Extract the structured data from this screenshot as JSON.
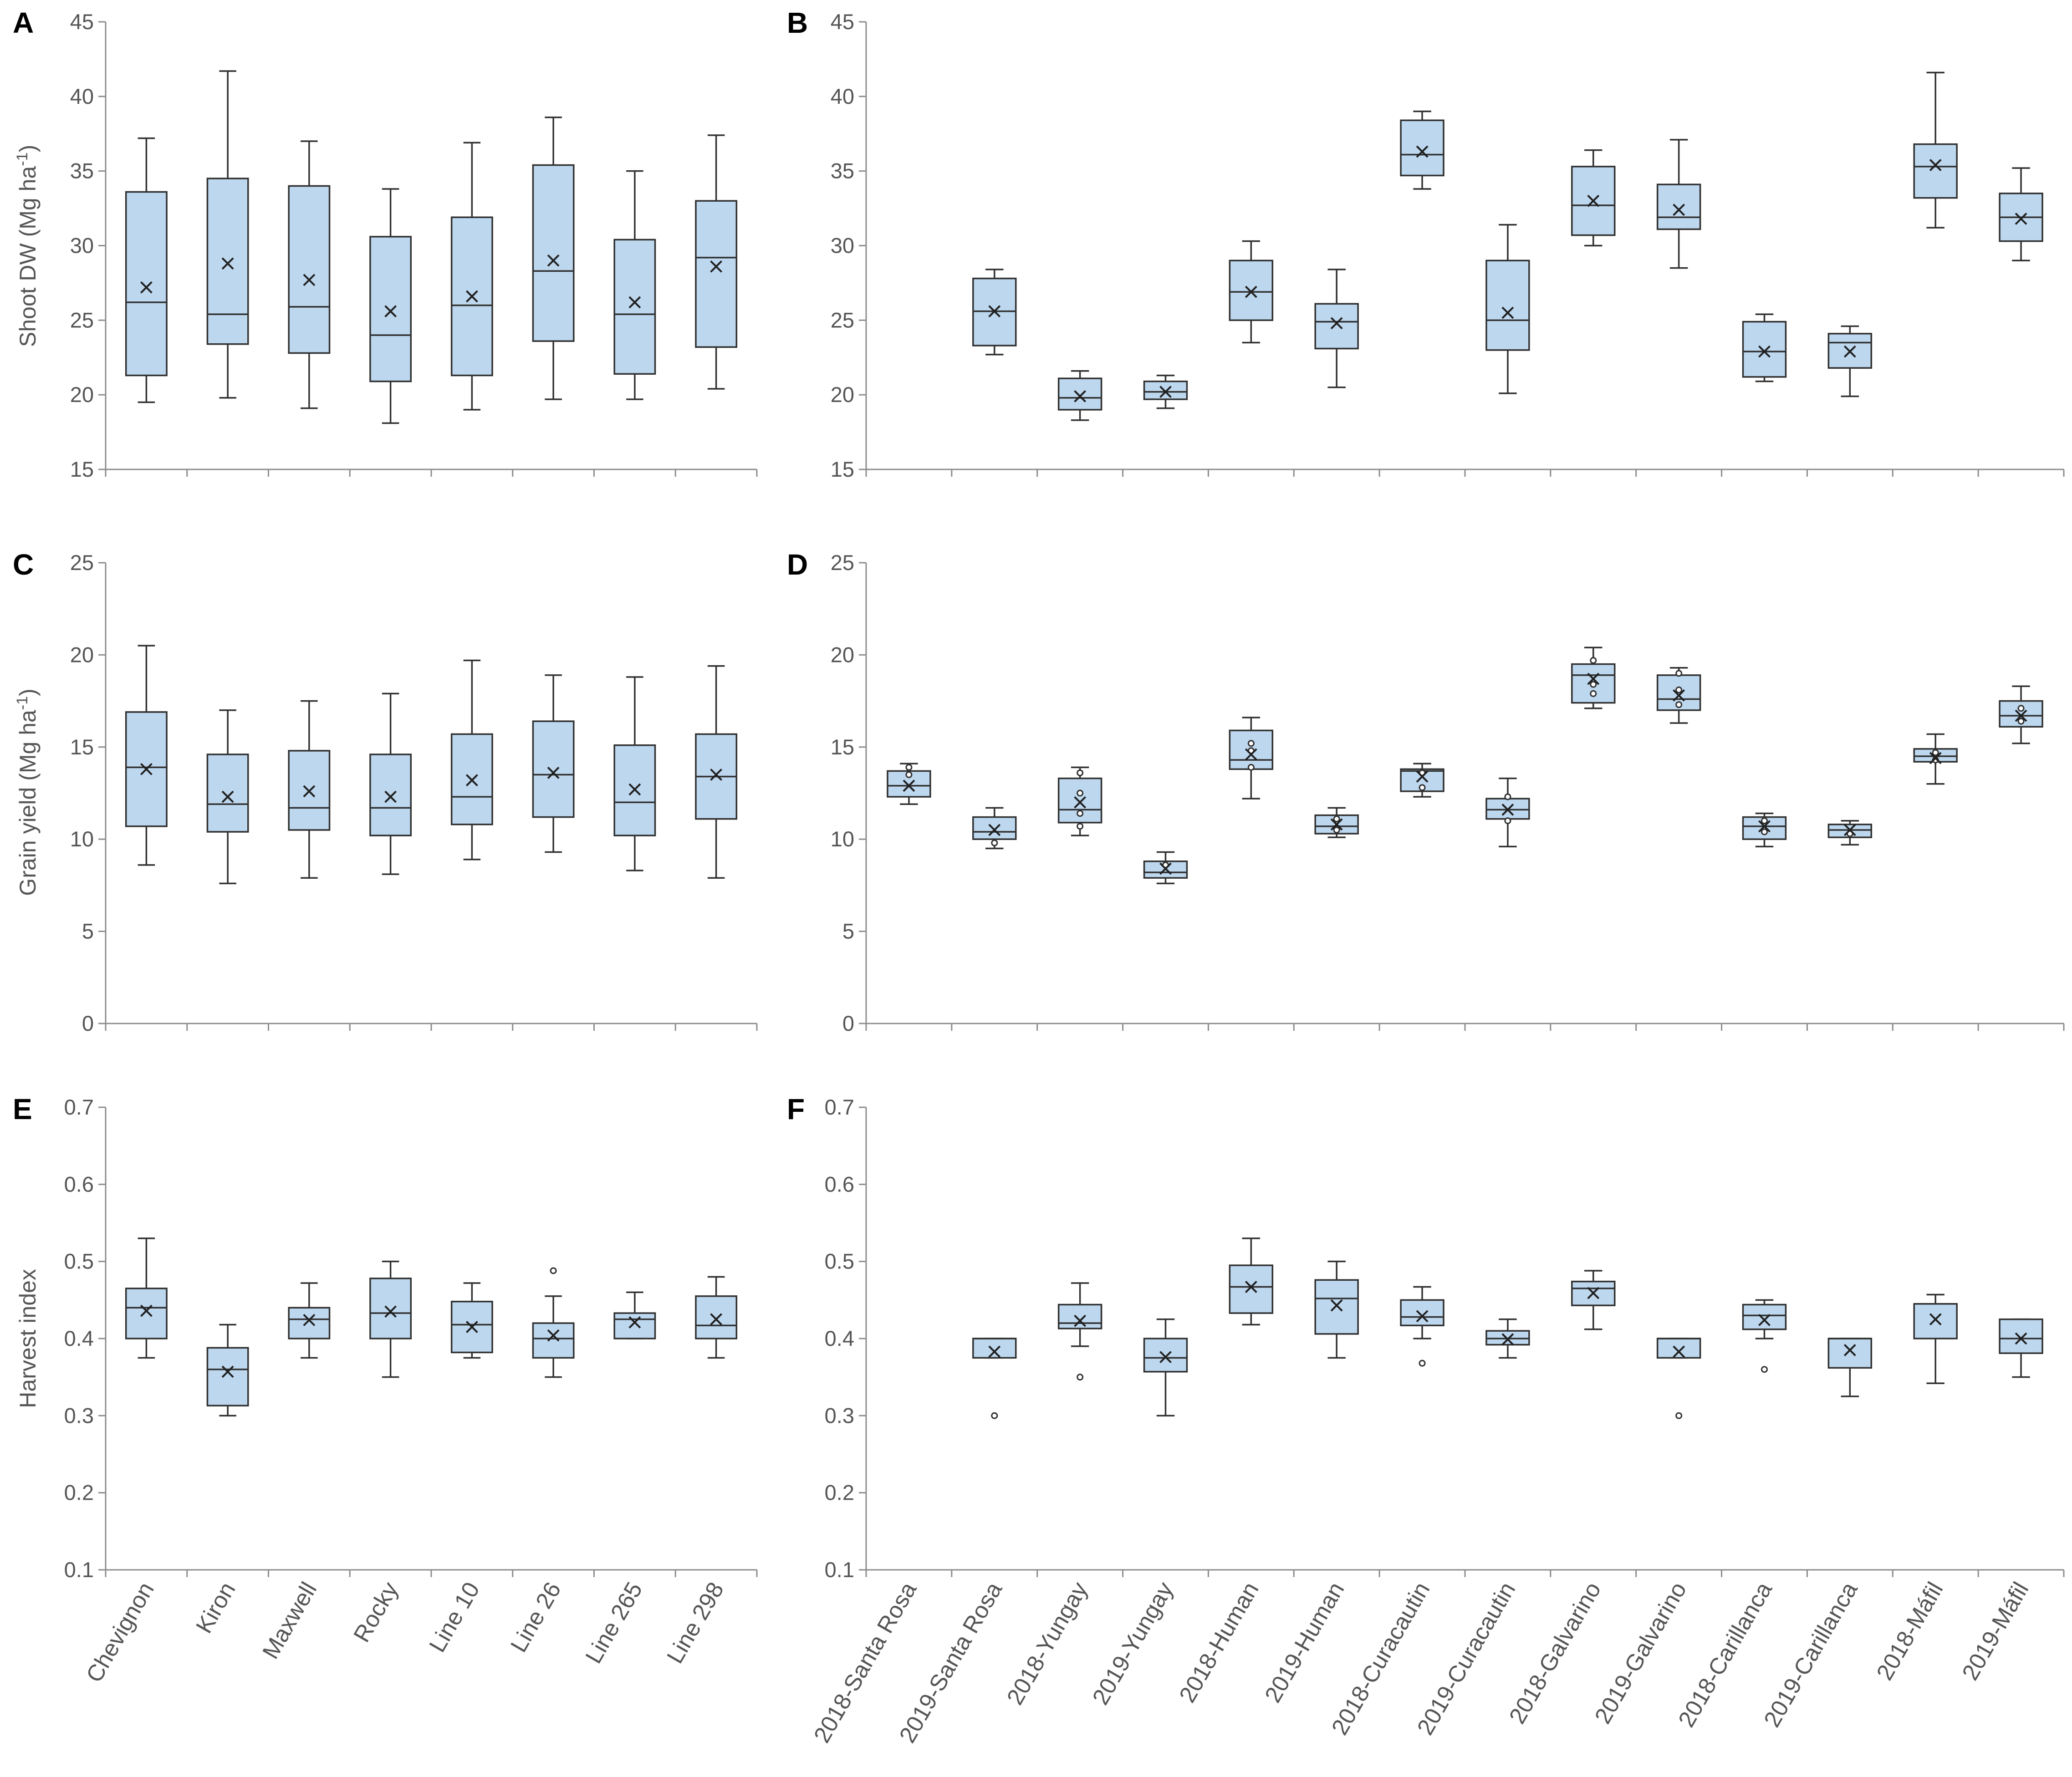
{
  "chart_data": [
    {
      "panel": "A",
      "type": "boxplot",
      "ylabel": "Shoot DW (Mg ha-1)",
      "ylim": [
        15,
        45
      ],
      "yticks": [
        15,
        20,
        25,
        30,
        35,
        40,
        45
      ],
      "categories": [
        "Chevignon",
        "Kiron",
        "Maxwell",
        "Rocky",
        "Line 10",
        "Line 26",
        "Line 265",
        "Line 298"
      ],
      "boxes": [
        {
          "min": 19.5,
          "q1": 21.3,
          "median": 26.2,
          "q3": 33.6,
          "max": 37.2,
          "mean": 27.2,
          "outliers": []
        },
        {
          "min": 19.8,
          "q1": 23.4,
          "median": 25.4,
          "q3": 34.5,
          "max": 41.7,
          "mean": 28.8,
          "outliers": []
        },
        {
          "min": 19.1,
          "q1": 22.8,
          "median": 25.9,
          "q3": 34.0,
          "max": 37.0,
          "mean": 27.7,
          "outliers": []
        },
        {
          "min": 18.1,
          "q1": 20.9,
          "median": 24.0,
          "q3": 30.6,
          "max": 33.8,
          "mean": 25.6,
          "outliers": []
        },
        {
          "min": 19.0,
          "q1": 21.3,
          "median": 26.0,
          "q3": 31.9,
          "max": 36.9,
          "mean": 26.6,
          "outliers": []
        },
        {
          "min": 19.7,
          "q1": 23.6,
          "median": 28.3,
          "q3": 35.4,
          "max": 38.6,
          "mean": 29.0,
          "outliers": []
        },
        {
          "min": 19.7,
          "q1": 21.4,
          "median": 25.4,
          "q3": 30.4,
          "max": 35.0,
          "mean": 26.2,
          "outliers": []
        },
        {
          "min": 20.4,
          "q1": 23.2,
          "median": 29.2,
          "q3": 33.0,
          "max": 37.4,
          "mean": 28.6,
          "outliers": []
        }
      ]
    },
    {
      "panel": "B",
      "type": "boxplot",
      "ylabel": "",
      "ylim": [
        15,
        45
      ],
      "yticks": [
        15,
        20,
        25,
        30,
        35,
        40,
        45
      ],
      "categories": [
        "2018-Santa Rosa",
        "2019-Santa Rosa",
        "2018-Yungay",
        "2019-Yungay",
        "2018-Human",
        "2019-Human",
        "2018-Curacautin",
        "2019-Curacautin",
        "2018-Galvarino",
        "2019-Galvarino",
        "2018-Carillanca",
        "2019-Carillanca",
        "2018-Máfil",
        "2019-Máfil"
      ],
      "boxes": [
        null,
        {
          "min": 22.7,
          "q1": 23.3,
          "median": 25.6,
          "q3": 27.8,
          "max": 28.4,
          "mean": 25.6,
          "outliers": []
        },
        {
          "min": 18.3,
          "q1": 19.0,
          "median": 19.8,
          "q3": 21.1,
          "max": 21.6,
          "mean": 19.9,
          "outliers": []
        },
        {
          "min": 19.1,
          "q1": 19.7,
          "median": 20.2,
          "q3": 20.9,
          "max": 21.3,
          "mean": 20.2,
          "outliers": []
        },
        {
          "min": 23.5,
          "q1": 25.0,
          "median": 26.9,
          "q3": 29.0,
          "max": 30.3,
          "mean": 26.9,
          "outliers": []
        },
        {
          "min": 20.5,
          "q1": 23.1,
          "median": 24.9,
          "q3": 26.1,
          "max": 28.4,
          "mean": 24.8,
          "outliers": []
        },
        {
          "min": 33.8,
          "q1": 34.7,
          "median": 36.1,
          "q3": 38.4,
          "max": 39.0,
          "mean": 36.3,
          "outliers": []
        },
        {
          "min": 20.1,
          "q1": 23.0,
          "median": 25.0,
          "q3": 29.0,
          "max": 31.4,
          "mean": 25.5,
          "outliers": []
        },
        {
          "min": 30.0,
          "q1": 30.7,
          "median": 32.7,
          "q3": 35.3,
          "max": 36.4,
          "mean": 33.0,
          "outliers": []
        },
        {
          "min": 28.5,
          "q1": 31.1,
          "median": 31.9,
          "q3": 34.1,
          "max": 37.1,
          "mean": 32.4,
          "outliers": []
        },
        {
          "min": 20.9,
          "q1": 21.2,
          "median": 22.9,
          "q3": 24.9,
          "max": 25.4,
          "mean": 22.9,
          "outliers": []
        },
        {
          "min": 19.9,
          "q1": 21.8,
          "median": 23.5,
          "q3": 24.1,
          "max": 24.6,
          "mean": 22.9,
          "outliers": []
        },
        {
          "min": 31.2,
          "q1": 33.2,
          "median": 35.3,
          "q3": 36.8,
          "max": 41.6,
          "mean": 35.4,
          "outliers": []
        },
        {
          "min": 29.0,
          "q1": 30.3,
          "median": 31.9,
          "q3": 33.5,
          "max": 35.2,
          "mean": 31.8,
          "outliers": []
        }
      ]
    },
    {
      "panel": "C",
      "type": "boxplot",
      "ylabel": "Grain yield (Mg ha-1)",
      "ylim": [
        0,
        25
      ],
      "yticks": [
        0,
        5,
        10,
        15,
        20,
        25
      ],
      "categories": [
        "Chevignon",
        "Kiron",
        "Maxwell",
        "Rocky",
        "Line 10",
        "Line 26",
        "Line 265",
        "Line 298"
      ],
      "boxes": [
        {
          "min": 8.6,
          "q1": 10.7,
          "median": 13.9,
          "q3": 16.9,
          "max": 20.5,
          "mean": 13.8,
          "outliers": []
        },
        {
          "min": 7.6,
          "q1": 10.4,
          "median": 11.9,
          "q3": 14.6,
          "max": 17.0,
          "mean": 12.3,
          "outliers": []
        },
        {
          "min": 7.9,
          "q1": 10.5,
          "median": 11.7,
          "q3": 14.8,
          "max": 17.5,
          "mean": 12.6,
          "outliers": []
        },
        {
          "min": 8.1,
          "q1": 10.2,
          "median": 11.7,
          "q3": 14.6,
          "max": 17.9,
          "mean": 12.3,
          "outliers": []
        },
        {
          "min": 8.9,
          "q1": 10.8,
          "median": 12.3,
          "q3": 15.7,
          "max": 19.7,
          "mean": 13.2,
          "outliers": []
        },
        {
          "min": 9.3,
          "q1": 11.2,
          "median": 13.5,
          "q3": 16.4,
          "max": 18.9,
          "mean": 13.6,
          "outliers": []
        },
        {
          "min": 8.3,
          "q1": 10.2,
          "median": 12.0,
          "q3": 15.1,
          "max": 18.8,
          "mean": 12.7,
          "outliers": []
        },
        {
          "min": 7.9,
          "q1": 11.1,
          "median": 13.4,
          "q3": 15.7,
          "max": 19.4,
          "mean": 13.5,
          "outliers": []
        }
      ]
    },
    {
      "panel": "D",
      "type": "boxplot",
      "ylabel": "",
      "ylim": [
        0,
        25
      ],
      "yticks": [
        0,
        5,
        10,
        15,
        20,
        25
      ],
      "categories": [
        "2018-Santa Rosa",
        "2019-Santa Rosa",
        "2018-Yungay",
        "2019-Yungay",
        "2018-Human",
        "2019-Human",
        "2018-Curacautin",
        "2019-Curacautin",
        "2018-Galvarino",
        "2019-Galvarino",
        "2018-Carillanca",
        "2019-Carillanca",
        "2018-Máfil",
        "2019-Máfil"
      ],
      "boxes": [
        {
          "min": 11.9,
          "q1": 12.3,
          "median": 12.9,
          "q3": 13.7,
          "max": 14.1,
          "mean": 12.9,
          "outliers": [
            13.5,
            13.9
          ]
        },
        {
          "min": 9.5,
          "q1": 10.0,
          "median": 10.4,
          "q3": 11.2,
          "max": 11.7,
          "mean": 10.5,
          "outliers": [
            9.8
          ]
        },
        {
          "min": 10.2,
          "q1": 10.9,
          "median": 11.6,
          "q3": 13.3,
          "max": 13.9,
          "mean": 12.0,
          "outliers": [
            10.7,
            11.4,
            12.5,
            13.6
          ]
        },
        {
          "min": 7.6,
          "q1": 7.9,
          "median": 8.2,
          "q3": 8.8,
          "max": 9.3,
          "mean": 8.4,
          "outliers": [
            8.6
          ]
        },
        {
          "min": 12.2,
          "q1": 13.8,
          "median": 14.3,
          "q3": 15.9,
          "max": 16.6,
          "mean": 14.6,
          "outliers": [
            13.9,
            14.8,
            15.2
          ]
        },
        {
          "min": 10.1,
          "q1": 10.3,
          "median": 10.7,
          "q3": 11.3,
          "max": 11.7,
          "mean": 10.8,
          "outliers": [
            10.5,
            11.1
          ]
        },
        {
          "min": 12.3,
          "q1": 12.6,
          "median": 13.7,
          "q3": 13.8,
          "max": 14.1,
          "mean": 13.4,
          "outliers": [
            12.8,
            13.6
          ]
        },
        {
          "min": 9.6,
          "q1": 11.1,
          "median": 11.6,
          "q3": 12.2,
          "max": 13.3,
          "mean": 11.6,
          "outliers": [
            11.0,
            12.3
          ]
        },
        {
          "min": 17.1,
          "q1": 17.4,
          "median": 18.9,
          "q3": 19.5,
          "max": 20.4,
          "mean": 18.7,
          "outliers": [
            17.9,
            18.4,
            19.7
          ]
        },
        {
          "min": 16.3,
          "q1": 17.0,
          "median": 17.6,
          "q3": 18.9,
          "max": 19.3,
          "mean": 17.8,
          "outliers": [
            17.3,
            18.1,
            19.0
          ]
        },
        {
          "min": 9.6,
          "q1": 10.0,
          "median": 10.7,
          "q3": 11.2,
          "max": 11.4,
          "mean": 10.7,
          "outliers": [
            10.4,
            11.0
          ]
        },
        {
          "min": 9.7,
          "q1": 10.1,
          "median": 10.5,
          "q3": 10.8,
          "max": 11.0,
          "mean": 10.5,
          "outliers": [
            10.3
          ]
        },
        {
          "min": 13.0,
          "q1": 14.2,
          "median": 14.5,
          "q3": 14.9,
          "max": 15.7,
          "mean": 14.4,
          "outliers": [
            14.3,
            14.7
          ]
        },
        {
          "min": 15.2,
          "q1": 16.1,
          "median": 16.7,
          "q3": 17.5,
          "max": 18.3,
          "mean": 16.7,
          "outliers": [
            16.4,
            17.1
          ]
        }
      ]
    },
    {
      "panel": "E",
      "type": "boxplot",
      "ylabel": "Harvest index",
      "ylim": [
        0.1,
        0.7
      ],
      "yticks": [
        0.1,
        0.2,
        0.3,
        0.4,
        0.5,
        0.6,
        0.7
      ],
      "categories": [
        "Chevignon",
        "Kiron",
        "Maxwell",
        "Rocky",
        "Line 10",
        "Line 26",
        "Line 265",
        "Line 298"
      ],
      "boxes": [
        {
          "min": 0.375,
          "q1": 0.4,
          "median": 0.44,
          "q3": 0.465,
          "max": 0.53,
          "mean": 0.436,
          "outliers": []
        },
        {
          "min": 0.3,
          "q1": 0.313,
          "median": 0.36,
          "q3": 0.388,
          "max": 0.418,
          "mean": 0.357,
          "outliers": []
        },
        {
          "min": 0.375,
          "q1": 0.4,
          "median": 0.425,
          "q3": 0.44,
          "max": 0.472,
          "mean": 0.424,
          "outliers": []
        },
        {
          "min": 0.35,
          "q1": 0.4,
          "median": 0.433,
          "q3": 0.478,
          "max": 0.5,
          "mean": 0.435,
          "outliers": []
        },
        {
          "min": 0.375,
          "q1": 0.382,
          "median": 0.418,
          "q3": 0.448,
          "max": 0.472,
          "mean": 0.415,
          "outliers": []
        },
        {
          "min": 0.35,
          "q1": 0.375,
          "median": 0.4,
          "q3": 0.42,
          "max": 0.455,
          "mean": 0.404,
          "outliers": [
            0.488
          ]
        },
        {
          "min": 0.4,
          "q1": 0.4,
          "median": 0.425,
          "q3": 0.433,
          "max": 0.46,
          "mean": 0.421,
          "outliers": []
        },
        {
          "min": 0.375,
          "q1": 0.4,
          "median": 0.417,
          "q3": 0.455,
          "max": 0.48,
          "mean": 0.425,
          "outliers": []
        }
      ]
    },
    {
      "panel": "F",
      "type": "boxplot",
      "ylabel": "",
      "ylim": [
        0.1,
        0.7
      ],
      "yticks": [
        0.1,
        0.2,
        0.3,
        0.4,
        0.5,
        0.6,
        0.7
      ],
      "categories": [
        "2018-Santa Rosa",
        "2019-Santa Rosa",
        "2018-Yungay",
        "2019-Yungay",
        "2018-Human",
        "2019-Human",
        "2018-Curacautin",
        "2019-Curacautin",
        "2018-Galvarino",
        "2019-Galvarino",
        "2018-Carillanca",
        "2019-Carillanca",
        "2018-Máfil",
        "2019-Máfil"
      ],
      "boxes": [
        null,
        {
          "min": 0.375,
          "q1": 0.375,
          "median": 0.4,
          "q3": 0.4,
          "max": 0.4,
          "mean": 0.383,
          "outliers": [
            0.3
          ]
        },
        {
          "min": 0.39,
          "q1": 0.413,
          "median": 0.42,
          "q3": 0.444,
          "max": 0.472,
          "mean": 0.423,
          "outliers": [
            0.35
          ]
        },
        {
          "min": 0.3,
          "q1": 0.357,
          "median": 0.375,
          "q3": 0.4,
          "max": 0.425,
          "mean": 0.376,
          "outliers": []
        },
        {
          "min": 0.418,
          "q1": 0.433,
          "median": 0.467,
          "q3": 0.495,
          "max": 0.53,
          "mean": 0.467,
          "outliers": []
        },
        {
          "min": 0.375,
          "q1": 0.406,
          "median": 0.452,
          "q3": 0.476,
          "max": 0.5,
          "mean": 0.443,
          "outliers": []
        },
        {
          "min": 0.4,
          "q1": 0.417,
          "median": 0.428,
          "q3": 0.45,
          "max": 0.467,
          "mean": 0.429,
          "outliers": [
            0.368
          ]
        },
        {
          "min": 0.375,
          "q1": 0.392,
          "median": 0.4,
          "q3": 0.41,
          "max": 0.425,
          "mean": 0.399,
          "outliers": []
        },
        {
          "min": 0.412,
          "q1": 0.443,
          "median": 0.465,
          "q3": 0.474,
          "max": 0.488,
          "mean": 0.459,
          "outliers": []
        },
        {
          "min": 0.375,
          "q1": 0.375,
          "median": 0.4,
          "q3": 0.4,
          "max": 0.4,
          "mean": 0.383,
          "outliers": [
            0.3
          ]
        },
        {
          "min": 0.4,
          "q1": 0.412,
          "median": 0.43,
          "q3": 0.444,
          "max": 0.45,
          "mean": 0.424,
          "outliers": [
            0.36
          ]
        },
        {
          "min": 0.325,
          "q1": 0.362,
          "median": 0.4,
          "q3": 0.4,
          "max": 0.4,
          "mean": 0.385,
          "outliers": []
        },
        {
          "min": 0.342,
          "q1": 0.4,
          "median": 0.445,
          "q3": 0.445,
          "max": 0.457,
          "mean": 0.425,
          "outliers": []
        },
        {
          "min": 0.35,
          "q1": 0.381,
          "median": 0.4,
          "q3": 0.425,
          "max": 0.425,
          "mean": 0.4,
          "outliers": []
        }
      ]
    }
  ],
  "colors": {
    "box_fill": "#bdd7ee",
    "box_stroke": "#303030",
    "axis": "#8c8c8c",
    "text": "#555555"
  }
}
